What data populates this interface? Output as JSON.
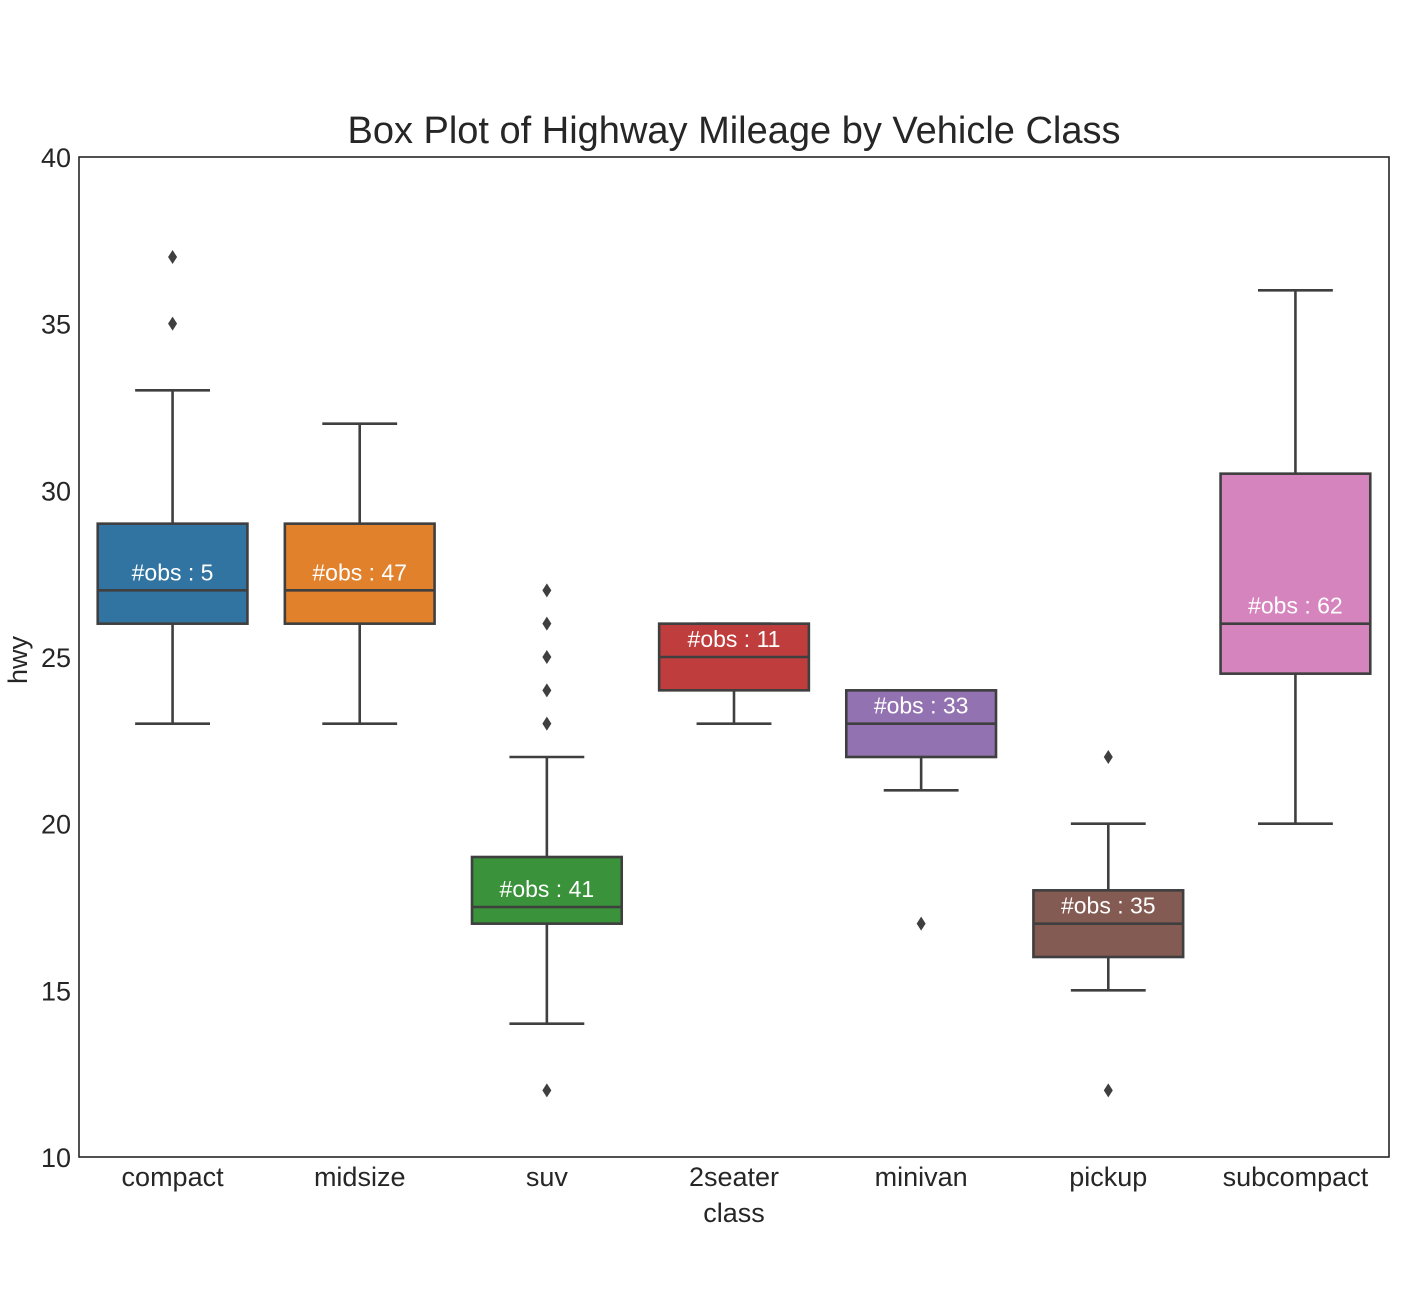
{
  "chart_data": {
    "type": "box",
    "title": "Box Plot of Highway Mileage by Vehicle Class",
    "xlabel": "class",
    "ylabel": "hwy",
    "ylim": [
      10,
      40
    ],
    "yticks": [
      10,
      15,
      20,
      25,
      30,
      35,
      40
    ],
    "grid": false,
    "categories": [
      "compact",
      "midsize",
      "suv",
      "2seater",
      "minivan",
      "pickup",
      "subcompact"
    ],
    "boxes": [
      {
        "category": "compact",
        "color": "#3274a1",
        "whisker_low": 23,
        "q1": 26,
        "median": 27,
        "q3": 29,
        "whisker_high": 33,
        "outliers": [
          35,
          37
        ],
        "obs_label": "#obs : 5"
      },
      {
        "category": "midsize",
        "color": "#e1812c",
        "whisker_low": 23,
        "q1": 26,
        "median": 27,
        "q3": 29,
        "whisker_high": 32,
        "outliers": [],
        "obs_label": "#obs : 47"
      },
      {
        "category": "suv",
        "color": "#3a923a",
        "whisker_low": 14,
        "q1": 17,
        "median": 17.5,
        "q3": 19,
        "whisker_high": 22,
        "outliers": [
          12,
          23,
          24,
          25,
          26,
          27
        ],
        "obs_label": "#obs : 41"
      },
      {
        "category": "2seater",
        "color": "#c03d3e",
        "whisker_low": 23,
        "q1": 24,
        "median": 25,
        "q3": 26,
        "whisker_high": 26,
        "outliers": [],
        "obs_label": "#obs : 11"
      },
      {
        "category": "minivan",
        "color": "#9372b2",
        "whisker_low": 21,
        "q1": 22,
        "median": 23,
        "q3": 24,
        "whisker_high": 24,
        "outliers": [
          17
        ],
        "obs_label": "#obs : 33"
      },
      {
        "category": "pickup",
        "color": "#845b53",
        "whisker_low": 15,
        "q1": 16,
        "median": 17,
        "q3": 18,
        "whisker_high": 20,
        "outliers": [
          12,
          22
        ],
        "obs_label": "#obs : 35"
      },
      {
        "category": "subcompact",
        "color": "#d684bd",
        "whisker_low": 20,
        "q1": 24.5,
        "median": 26,
        "q3": 30.5,
        "whisker_high": 36,
        "outliers": [],
        "obs_label": "#obs : 62"
      }
    ]
  }
}
